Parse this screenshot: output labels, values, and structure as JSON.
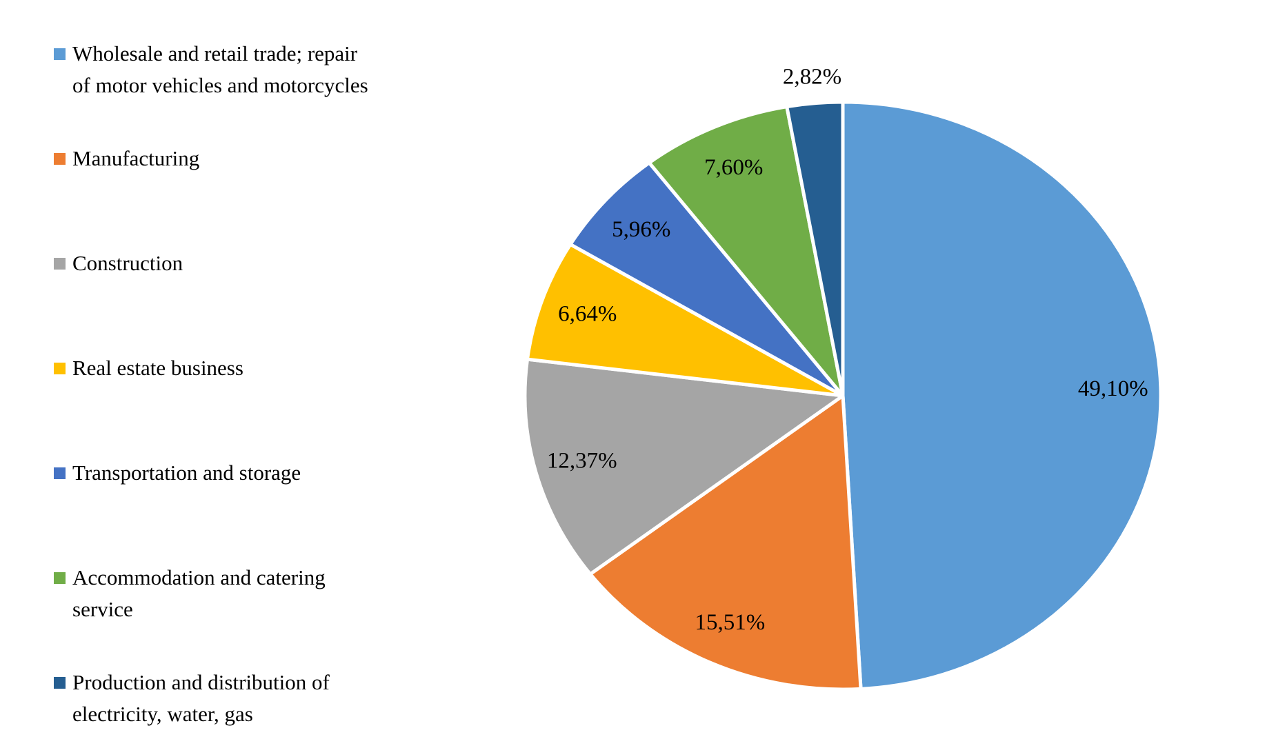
{
  "figure": {
    "background": "#ffffff"
  },
  "chart_data": {
    "type": "pie",
    "title": "",
    "legend_position": "left",
    "start_angle_deg": 0,
    "direction": "clockwise",
    "decimal_separator": ",",
    "total_percent": 100,
    "slice_gap_color": "#ffffff",
    "slices": [
      {
        "label": "Wholesale and retail trade; repair of motor vehicles and motorcycles",
        "value": 49.1,
        "display": "49,10%",
        "color": "#5B9BD5",
        "label_placement": "inside"
      },
      {
        "label": "Manufacturing",
        "value": 15.51,
        "display": "15,51%",
        "color": "#ED7D31",
        "label_placement": "inside"
      },
      {
        "label": "Construction",
        "value": 12.37,
        "display": "12,37%",
        "color": "#A5A5A5",
        "label_placement": "inside"
      },
      {
        "label": "Real estate business",
        "value": 6.64,
        "display": "6,64%",
        "color": "#FFC000",
        "label_placement": "inside"
      },
      {
        "label": "Transportation and storage",
        "value": 5.96,
        "display": "5,96%",
        "color": "#4472C4",
        "label_placement": "inside"
      },
      {
        "label": "Accommodation and catering service",
        "value": 7.6,
        "display": "7,60%",
        "color": "#70AD47",
        "label_placement": "inside"
      },
      {
        "label": "Production and distribution of electricity, water, gas",
        "value": 2.82,
        "display": "2,82%",
        "color": "#255E91",
        "label_placement": "outside"
      }
    ]
  }
}
